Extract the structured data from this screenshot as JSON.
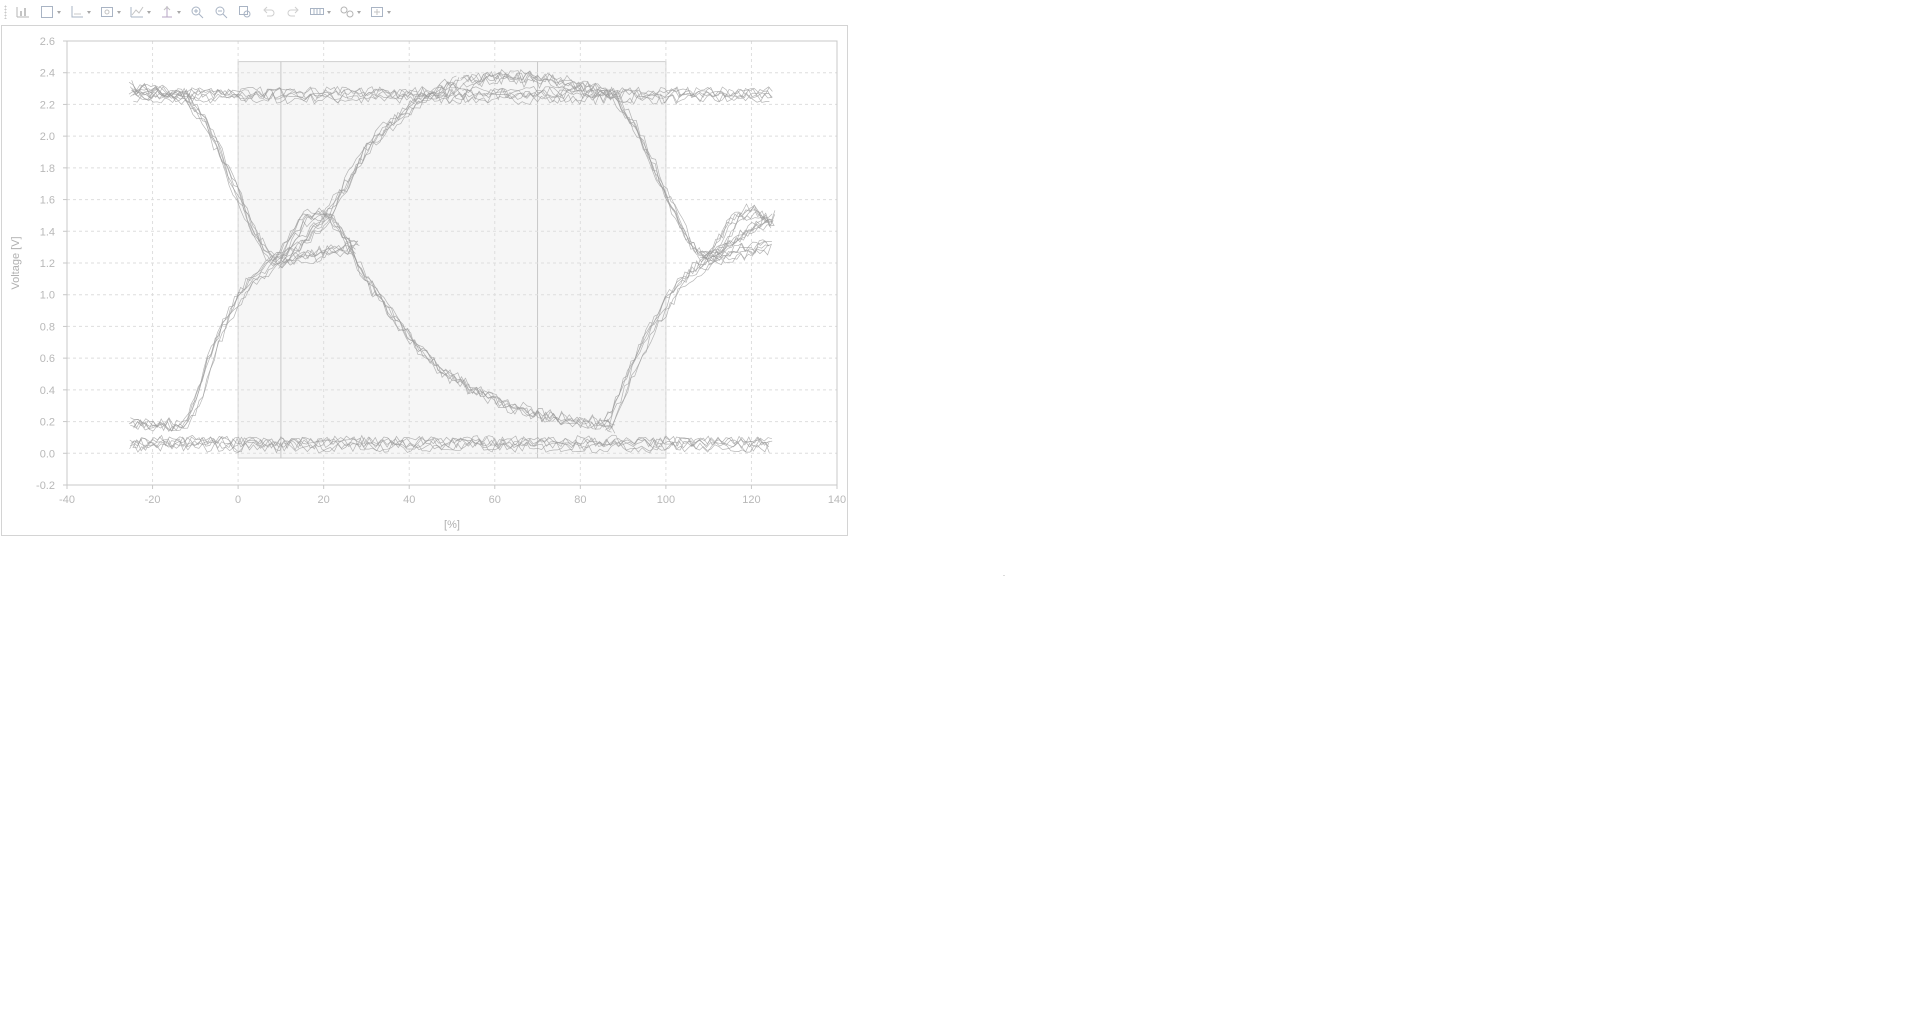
{
  "toolbar": {
    "buttons": [
      {
        "name": "chart-select-icon",
        "dropdown": false
      },
      {
        "name": "rectangle-icon",
        "dropdown": true
      },
      {
        "name": "axis-icon",
        "dropdown": true
      },
      {
        "name": "image-frame-icon",
        "dropdown": true
      },
      {
        "name": "line-chart-icon",
        "dropdown": true
      },
      {
        "name": "cursor-measure-icon",
        "dropdown": true
      },
      {
        "name": "zoom-in-icon",
        "dropdown": false
      },
      {
        "name": "zoom-out-icon",
        "dropdown": false
      },
      {
        "name": "zoom-fit-icon",
        "dropdown": false
      },
      {
        "name": "undo-icon",
        "dropdown": false
      },
      {
        "name": "redo-icon",
        "dropdown": false
      },
      {
        "name": "grid-icon",
        "dropdown": true
      },
      {
        "name": "link-icon",
        "dropdown": true
      },
      {
        "name": "export-icon",
        "dropdown": true
      }
    ]
  },
  "chart_data": {
    "type": "line",
    "subtype": "eye-diagram",
    "title": "",
    "xlabel": "[%]",
    "ylabel": "Voltage [V]",
    "xlim": [
      -40,
      140
    ],
    "ylim": [
      -0.2,
      2.6
    ],
    "xticks": [
      -40,
      -20,
      0,
      20,
      40,
      60,
      80,
      100,
      120,
      140
    ],
    "yticks": [
      -0.2,
      0.0,
      0.2,
      0.4,
      0.6,
      0.8,
      1.0,
      1.2,
      1.4,
      1.6,
      1.8,
      2.0,
      2.2,
      2.4,
      2.6
    ],
    "grid": true,
    "colors": {
      "trace": "#9e9e9e",
      "mask_fill": "#eeeeee",
      "grid": "#dedede",
      "axis": "#c8c8c8"
    },
    "mask": {
      "x": [
        0,
        100
      ],
      "y": [
        -0.03,
        2.47
      ],
      "dividers_x": [
        10,
        70
      ]
    },
    "series": [
      {
        "x": [
          -25,
          125
        ],
        "y": [
          2.26,
          2.26
        ]
      },
      {
        "x": [
          -25,
          125
        ],
        "y": [
          0.06,
          0.06
        ]
      },
      {
        "x": [
          -25,
          -18,
          -12,
          -8,
          -4,
          0,
          4,
          7,
          10,
          14,
          20,
          26,
          30,
          36,
          42,
          48,
          52
        ],
        "y": [
          2.3,
          2.28,
          2.24,
          2.1,
          1.88,
          1.62,
          1.38,
          1.24,
          1.22,
          1.3,
          1.46,
          1.72,
          1.92,
          2.08,
          2.22,
          2.3,
          2.33
        ]
      },
      {
        "x": [
          -25,
          -15,
          -12,
          -9,
          -7,
          -4,
          -1,
          2,
          5,
          8,
          10,
          13,
          16,
          19,
          22,
          26,
          30,
          36,
          42,
          48,
          54,
          60,
          66,
          72,
          78,
          84,
          88
        ],
        "y": [
          0.2,
          0.18,
          0.2,
          0.38,
          0.58,
          0.78,
          0.94,
          1.06,
          1.14,
          1.2,
          1.26,
          1.4,
          1.5,
          1.52,
          1.48,
          1.32,
          1.1,
          0.88,
          0.68,
          0.52,
          0.42,
          0.34,
          0.28,
          0.24,
          0.22,
          0.2,
          0.18
        ]
      },
      {
        "x": [
          10,
          14,
          18,
          20,
          24,
          28
        ],
        "y": [
          1.2,
          1.22,
          1.24,
          1.26,
          1.28,
          1.3
        ]
      },
      {
        "x": [
          52,
          58,
          64,
          70,
          76,
          82,
          88,
          92,
          96,
          100,
          104,
          107,
          110,
          114,
          118,
          122,
          125
        ],
        "y": [
          2.33,
          2.36,
          2.37,
          2.36,
          2.33,
          2.3,
          2.24,
          2.08,
          1.86,
          1.62,
          1.4,
          1.26,
          1.24,
          1.3,
          1.38,
          1.44,
          1.48
        ]
      },
      {
        "x": [
          86,
          88,
          91,
          94,
          97,
          100,
          103,
          106,
          109,
          112,
          116,
          120,
          125
        ],
        "y": [
          0.18,
          0.26,
          0.46,
          0.64,
          0.8,
          0.94,
          1.06,
          1.14,
          1.2,
          1.3,
          1.48,
          1.54,
          1.46
        ]
      },
      {
        "x": [
          108,
          112,
          116,
          120,
          125
        ],
        "y": [
          1.22,
          1.24,
          1.26,
          1.28,
          1.32
        ]
      }
    ]
  }
}
